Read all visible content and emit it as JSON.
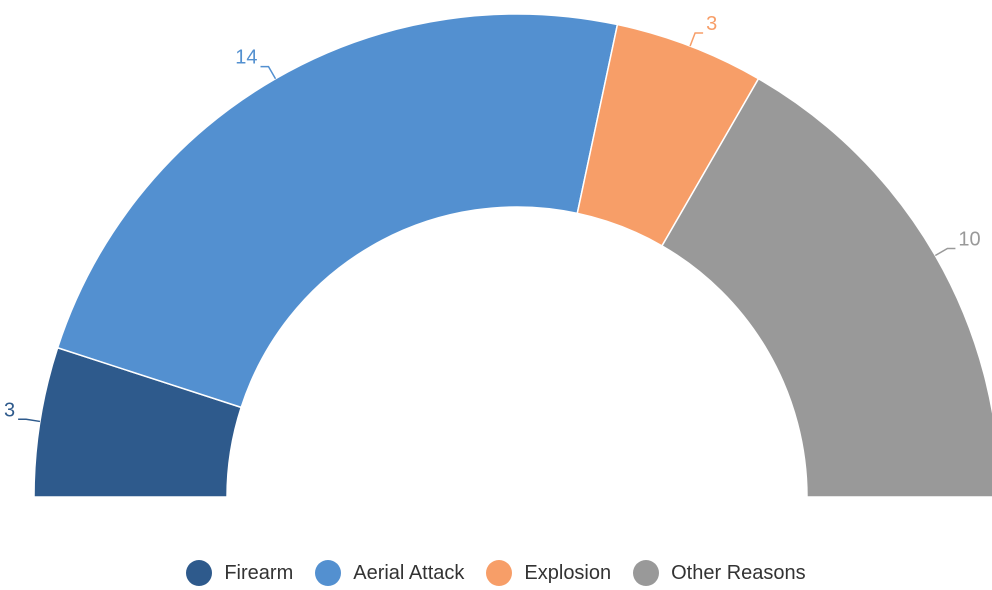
{
  "chart_data": {
    "type": "pie",
    "variant": "semi-donut",
    "categories": [
      "Firearm",
      "Aerial Attack",
      "Explosion",
      "Other Reasons"
    ],
    "values": [
      3,
      14,
      3,
      10
    ],
    "colors": [
      "#2e5a8c",
      "#5390d0",
      "#f79e68",
      "#999999"
    ],
    "data_labels": [
      "3",
      "14",
      "3",
      "10"
    ],
    "legend_position": "bottom"
  }
}
